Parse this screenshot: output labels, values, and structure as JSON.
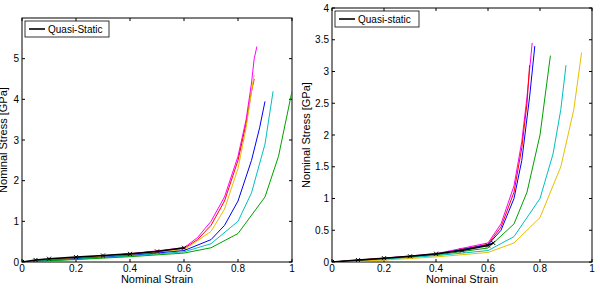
{
  "chart_data": [
    {
      "type": "line",
      "x_label": "Nominal Strain",
      "y_label": "Nominal Stress [GPa]",
      "xlim": [
        0,
        1
      ],
      "ylim": [
        0,
        6
      ],
      "xticks": [
        0,
        0.2,
        0.4,
        0.6,
        0.8,
        1
      ],
      "yticks": [
        0,
        1,
        2,
        3,
        4,
        5
      ],
      "legend": "upper-left",
      "series": [
        {
          "name": "Quasi-Static",
          "color": "#000000",
          "marker": "x",
          "line_style": "solid",
          "x": [
            0,
            0.05,
            0.1,
            0.2,
            0.3,
            0.4,
            0.5,
            0.6
          ],
          "values": [
            0,
            0.05,
            0.08,
            0.12,
            0.16,
            0.2,
            0.26,
            0.35
          ]
        },
        {
          "color": "#ff00ff",
          "line_style": "solid",
          "x": [
            0,
            0.2,
            0.4,
            0.6,
            0.65,
            0.7,
            0.75,
            0.8,
            0.83,
            0.85,
            0.86,
            0.87
          ],
          "values": [
            0,
            0.1,
            0.2,
            0.35,
            0.6,
            1.0,
            1.6,
            2.6,
            3.5,
            4.4,
            5.0,
            5.3
          ]
        },
        {
          "color": "#ff0000",
          "line_style": "solid",
          "x": [
            0,
            0.2,
            0.4,
            0.6,
            0.65,
            0.7,
            0.75,
            0.8,
            0.83,
            0.85,
            0.86
          ],
          "values": [
            0,
            0.1,
            0.2,
            0.33,
            0.55,
            0.9,
            1.5,
            2.5,
            3.4,
            4.2,
            4.5
          ]
        },
        {
          "color": "#e6c000",
          "line_style": "solid",
          "x": [
            0,
            0.2,
            0.4,
            0.6,
            0.7,
            0.75,
            0.8,
            0.83,
            0.85,
            0.86
          ],
          "values": [
            0,
            0.1,
            0.18,
            0.3,
            0.75,
            1.3,
            2.3,
            3.3,
            4.2,
            4.6
          ]
        },
        {
          "color": "#0000ff",
          "line_style": "solid",
          "x": [
            0,
            0.2,
            0.4,
            0.6,
            0.7,
            0.75,
            0.8,
            0.85,
            0.88,
            0.9
          ],
          "values": [
            0,
            0.08,
            0.16,
            0.28,
            0.55,
            0.9,
            1.5,
            2.5,
            3.3,
            3.95
          ]
        },
        {
          "color": "#00bfbf",
          "line_style": "solid",
          "x": [
            0,
            0.2,
            0.4,
            0.6,
            0.7,
            0.8,
            0.85,
            0.9,
            0.93
          ],
          "values": [
            0,
            0.07,
            0.15,
            0.25,
            0.45,
            1.0,
            1.7,
            2.9,
            4.2
          ]
        },
        {
          "color": "#00a000",
          "line_style": "solid",
          "x": [
            0,
            0.2,
            0.4,
            0.6,
            0.7,
            0.8,
            0.9,
            0.95,
            1.0
          ],
          "values": [
            0,
            0.06,
            0.13,
            0.22,
            0.35,
            0.7,
            1.6,
            2.6,
            4.2
          ]
        }
      ]
    },
    {
      "type": "line",
      "x_label": "Nominal Strain",
      "y_label": "Nominal Stress [GPa]",
      "xlim": [
        0,
        1
      ],
      "ylim": [
        0,
        4
      ],
      "xticks": [
        0,
        0.2,
        0.4,
        0.6,
        0.8,
        1
      ],
      "yticks": [
        0,
        0.5,
        1,
        1.5,
        2,
        2.5,
        3,
        3.5,
        4
      ],
      "legend": "upper-left",
      "series": [
        {
          "name": "Quasi-static",
          "color": "#000000",
          "marker": "x",
          "line_style": "solid",
          "x": [
            0,
            0.1,
            0.2,
            0.3,
            0.4,
            0.5,
            0.6,
            0.62
          ],
          "values": [
            0,
            0.03,
            0.06,
            0.09,
            0.13,
            0.18,
            0.26,
            0.3
          ]
        },
        {
          "color": "#ff00ff",
          "line_style": "solid",
          "x": [
            0,
            0.2,
            0.4,
            0.6,
            0.65,
            0.7,
            0.73,
            0.75,
            0.77
          ],
          "values": [
            0,
            0.06,
            0.13,
            0.3,
            0.6,
            1.2,
            1.9,
            2.6,
            3.45
          ]
        },
        {
          "color": "#ff0000",
          "line_style": "solid",
          "x": [
            0,
            0.2,
            0.4,
            0.6,
            0.65,
            0.7,
            0.73,
            0.75,
            0.76
          ],
          "values": [
            0,
            0.06,
            0.12,
            0.28,
            0.55,
            1.1,
            1.8,
            2.5,
            3.1
          ]
        },
        {
          "color": "#0000ff",
          "line_style": "solid",
          "x": [
            0,
            0.2,
            0.4,
            0.6,
            0.65,
            0.7,
            0.73,
            0.76,
            0.78
          ],
          "values": [
            0,
            0.05,
            0.12,
            0.27,
            0.5,
            1.0,
            1.6,
            2.6,
            3.4
          ]
        },
        {
          "color": "#00a000",
          "line_style": "solid",
          "x": [
            0,
            0.2,
            0.4,
            0.6,
            0.7,
            0.75,
            0.8,
            0.84
          ],
          "values": [
            0,
            0.05,
            0.11,
            0.22,
            0.6,
            1.1,
            2.0,
            3.25
          ]
        },
        {
          "color": "#00bfbf",
          "line_style": "solid",
          "x": [
            0,
            0.2,
            0.4,
            0.6,
            0.7,
            0.8,
            0.85,
            0.88,
            0.9
          ],
          "values": [
            0,
            0.04,
            0.1,
            0.18,
            0.4,
            1.0,
            1.7,
            2.4,
            3.1
          ]
        },
        {
          "color": "#e6c000",
          "line_style": "solid",
          "x": [
            0,
            0.2,
            0.4,
            0.6,
            0.7,
            0.8,
            0.88,
            0.93,
            0.96
          ],
          "values": [
            0,
            0.03,
            0.08,
            0.15,
            0.3,
            0.7,
            1.5,
            2.4,
            3.3
          ]
        }
      ]
    }
  ]
}
